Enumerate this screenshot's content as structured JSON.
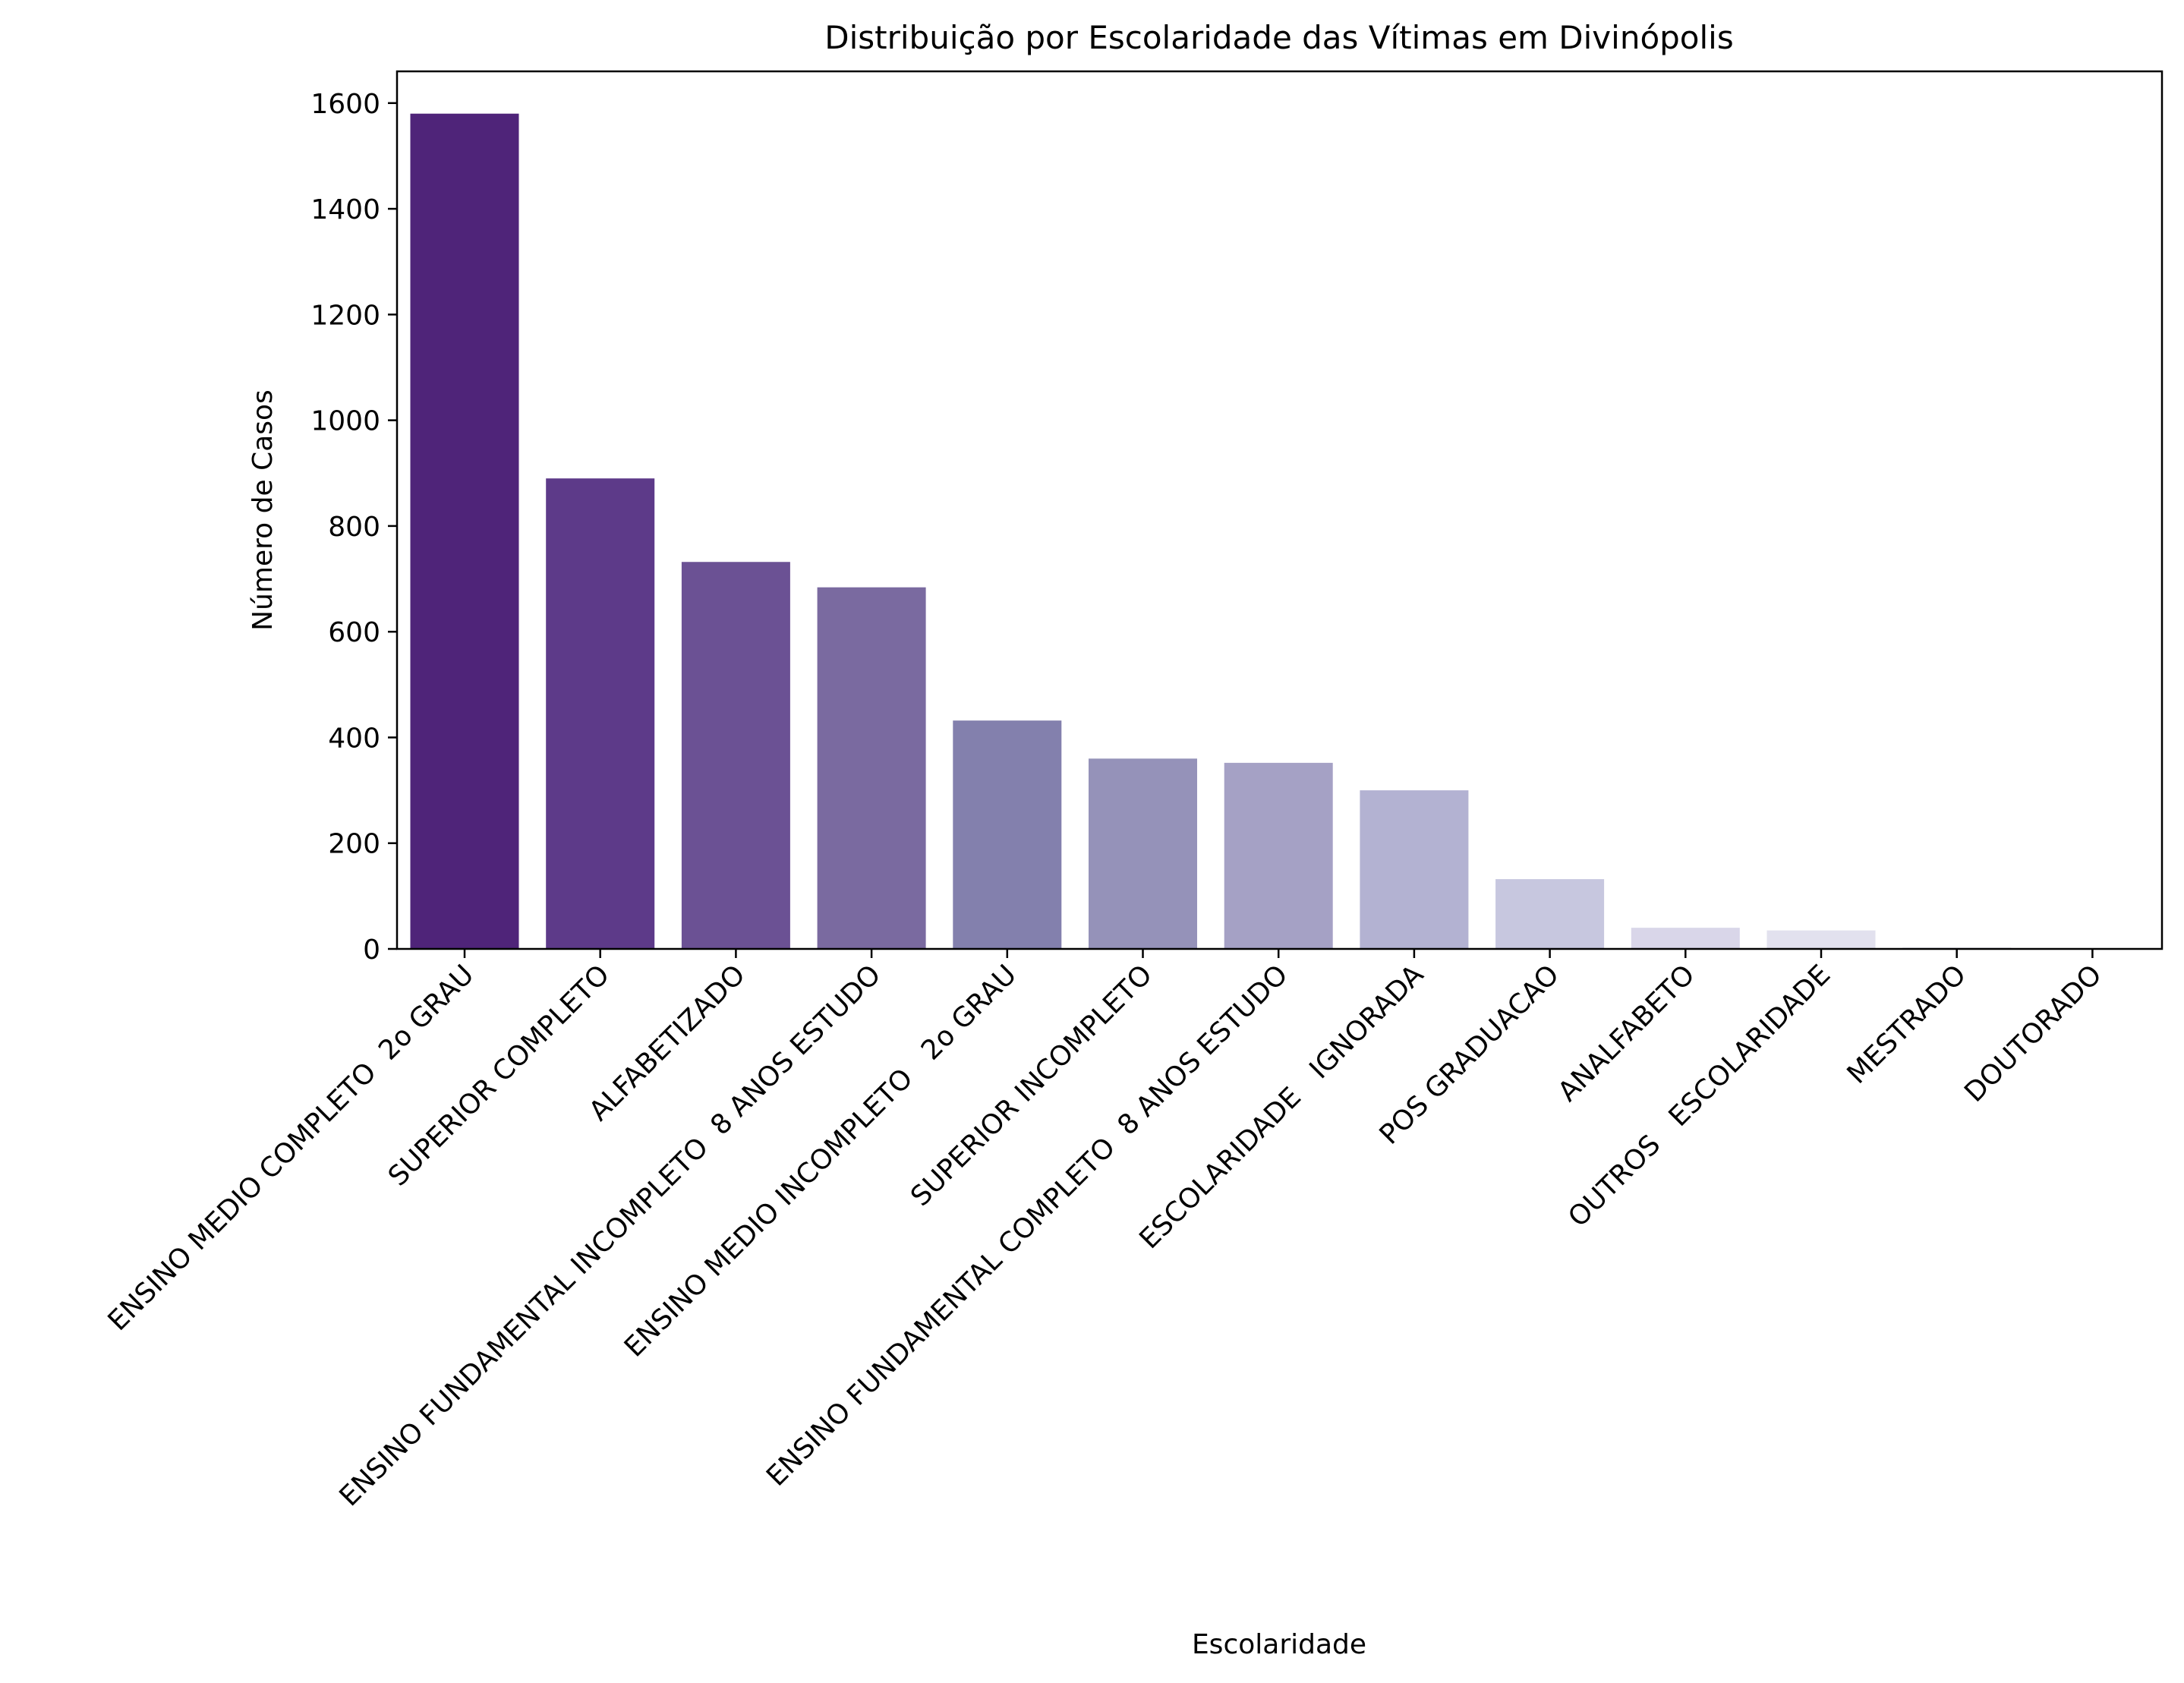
{
  "chart_data": {
    "type": "bar",
    "title": "Distribuição por Escolaridade das Vítimas em Divinópolis",
    "xlabel": "Escolaridade",
    "ylabel": "Número de Casos",
    "ylim": [
      0,
      1660
    ],
    "yticks": [
      0,
      200,
      400,
      600,
      800,
      1000,
      1200,
      1400,
      1600
    ],
    "grid": false,
    "categories": [
      "ENSINO MEDIO COMPLETO  2o GRAU",
      "SUPERIOR COMPLETO",
      "ALFABETIZADO",
      "ENSINO FUNDAMENTAL INCOMPLETO  8 ANOS ESTUDO",
      "ENSINO MEDIO INCOMPLETO   2o GRAU",
      "SUPERIOR INCOMPLETO",
      "ENSINO FUNDAMENTAL COMPLETO  8 ANOS ESTUDO",
      "ESCOLARIDADE   IGNORADA",
      "POS GRADUACAO",
      "ANALFABETO",
      "OUTROS   ESCOLARIDADE",
      "MESTRADO",
      "DOUTORADO"
    ],
    "values": [
      1580,
      890,
      732,
      684,
      432,
      360,
      352,
      300,
      132,
      40,
      35,
      3,
      1
    ],
    "colors": [
      "#4f2479",
      "#5d3a89",
      "#6b5194",
      "#7a6aa0",
      "#8380ad",
      "#9592b9",
      "#a5a1c5",
      "#b3b2d2",
      "#c7c7df",
      "#d9d6e9",
      "#e2e1ee",
      "#eeecf4",
      "#f4f3f8"
    ]
  }
}
